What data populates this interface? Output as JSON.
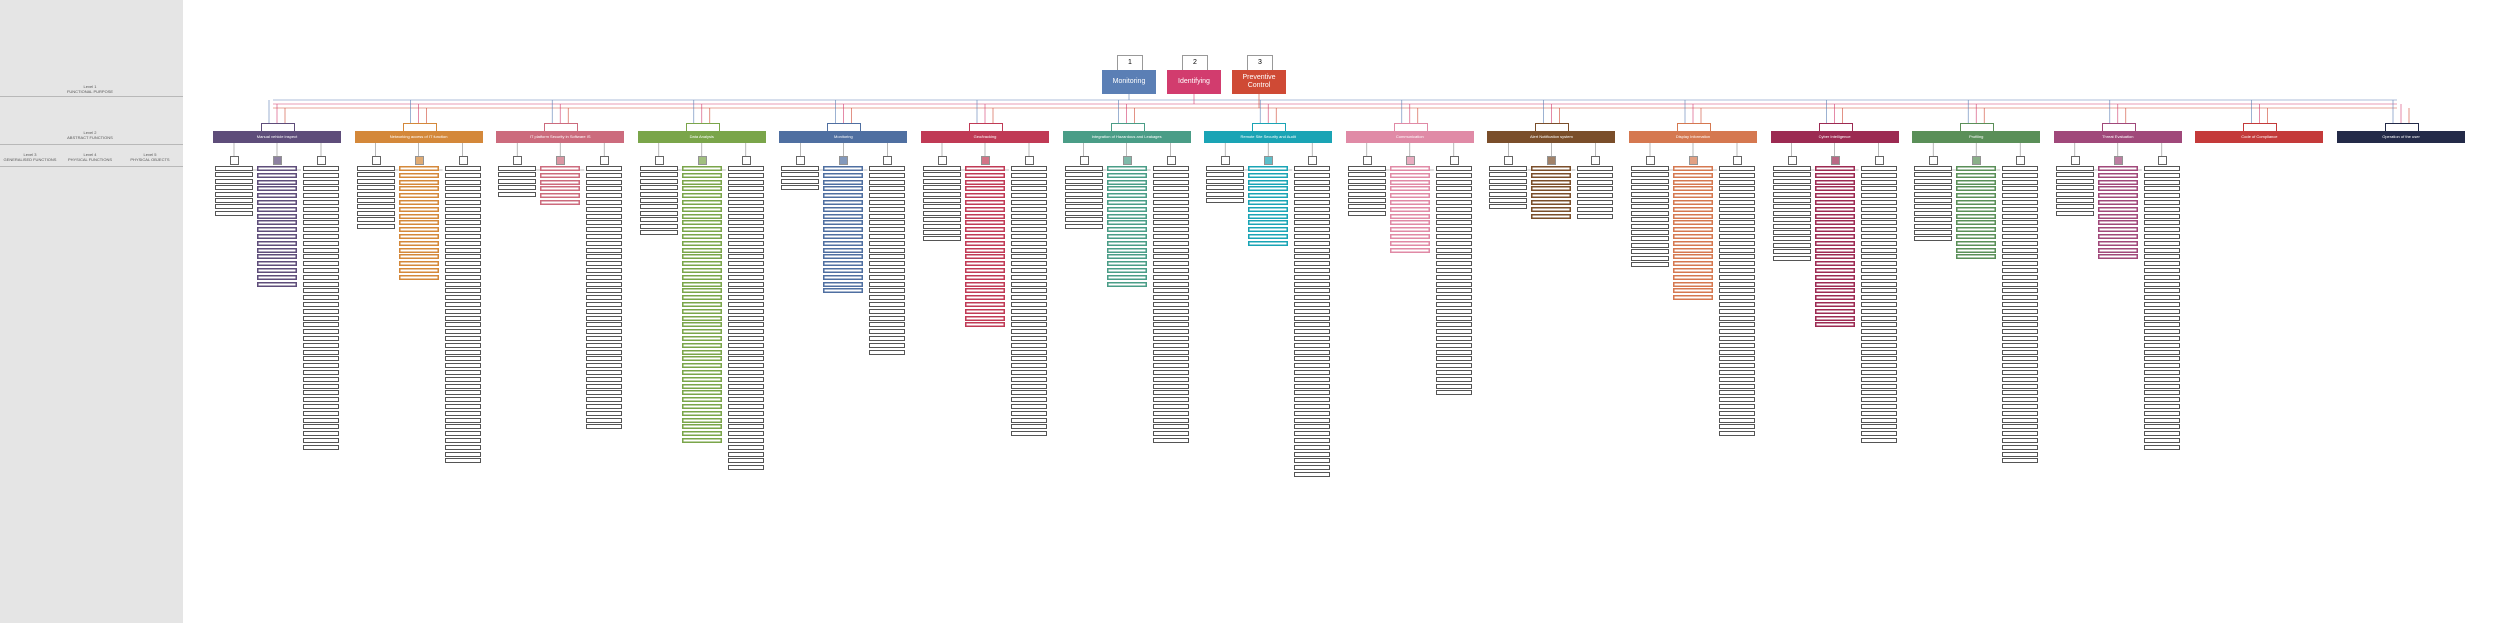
{
  "levels": [
    {
      "num": "Level 1",
      "name": "FUNCTIONAL PURPOSE"
    },
    {
      "num": "Level 2",
      "name": "ABSTRACT FUNCTIONS"
    },
    {
      "num": "Level 3",
      "name": "GENERALISED FUNCTIONS"
    },
    {
      "num": "Level 4",
      "name": "PHYSICAL FUNCTIONS"
    },
    {
      "num": "Level 5",
      "name": "PHYSICAL OBJECTS"
    }
  ],
  "top_functions": [
    {
      "num": "1",
      "label": "Monitoring",
      "color": "#5b7fb5"
    },
    {
      "num": "2",
      "label": "Identifying",
      "color": "#d23c6e"
    },
    {
      "num": "3",
      "label": "Preventive Control",
      "color": "#cf4a35"
    }
  ],
  "categories": [
    {
      "label": "Manual vehicle inspect",
      "color": "#5e4d7a"
    },
    {
      "label": "Networking access of IT function",
      "color": "#d4883a"
    },
    {
      "label": "IT platform Security in Software IS",
      "color": "#cc6b7d"
    },
    {
      "label": "Data Analysis",
      "color": "#7aa54a"
    },
    {
      "label": "Monitoring",
      "color": "#4f6fa1"
    },
    {
      "label": "Geo/tracking",
      "color": "#c03a55"
    },
    {
      "label": "Integration of Hazardous and Leakages",
      "color": "#4a9d87"
    },
    {
      "label": "Remote Site Security and Audit",
      "color": "#1aa4b5"
    },
    {
      "label": "Communication",
      "color": "#e08aa6"
    },
    {
      "label": "Alert Notification system",
      "color": "#7a4e2a"
    },
    {
      "label": "Display Information",
      "color": "#d57850"
    },
    {
      "label": "Cyber Intelligence",
      "color": "#9c2a52"
    },
    {
      "label": "Profiling",
      "color": "#5a8f58"
    },
    {
      "label": "Threat Evaluation",
      "color": "#a0487a"
    },
    {
      "label": "Code of Compliance",
      "color": "#c43a3a"
    },
    {
      "label": "Operation of the user",
      "color": "#232a48"
    }
  ]
}
